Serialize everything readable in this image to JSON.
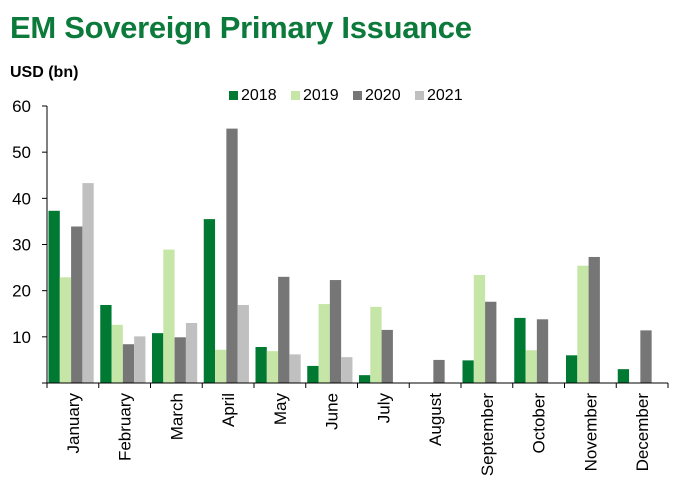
{
  "header": {
    "title": "EM Sovereign Primary Issuance",
    "title_color": "#0b7a3b",
    "unit_label": "USD (bn)"
  },
  "chart_data": {
    "type": "bar",
    "title": "EM Sovereign Primary Issuance",
    "xlabel": "",
    "ylabel": "USD (bn)",
    "ylim": [
      0,
      60
    ],
    "yticks": [
      10,
      20,
      30,
      40,
      50,
      60
    ],
    "grid": false,
    "legend_position": "top",
    "categories": [
      "January",
      "February",
      "March",
      "April",
      "May",
      "June",
      "July",
      "August",
      "September",
      "October",
      "November",
      "December"
    ],
    "series": [
      {
        "name": "2018",
        "color": "#007a33",
        "values": [
          37.3,
          16.9,
          10.8,
          35.5,
          7.8,
          3.7,
          1.7,
          0,
          4.9,
          14.1,
          6.0,
          3.0
        ]
      },
      {
        "name": "2019",
        "color": "#c6e6a7",
        "values": [
          22.9,
          12.6,
          28.9,
          7.2,
          6.9,
          17.1,
          16.5,
          0,
          23.4,
          7.1,
          25.4,
          0
        ]
      },
      {
        "name": "2020",
        "color": "#767676",
        "values": [
          33.9,
          8.4,
          9.9,
          55.1,
          23.0,
          22.3,
          11.5,
          5.0,
          17.6,
          13.8,
          27.3,
          11.4
        ]
      },
      {
        "name": "2021",
        "color": "#c0c0c0",
        "values": [
          43.3,
          10.1,
          13.0,
          16.9,
          6.2,
          5.6,
          0,
          0,
          0,
          0,
          0,
          0
        ]
      }
    ]
  }
}
